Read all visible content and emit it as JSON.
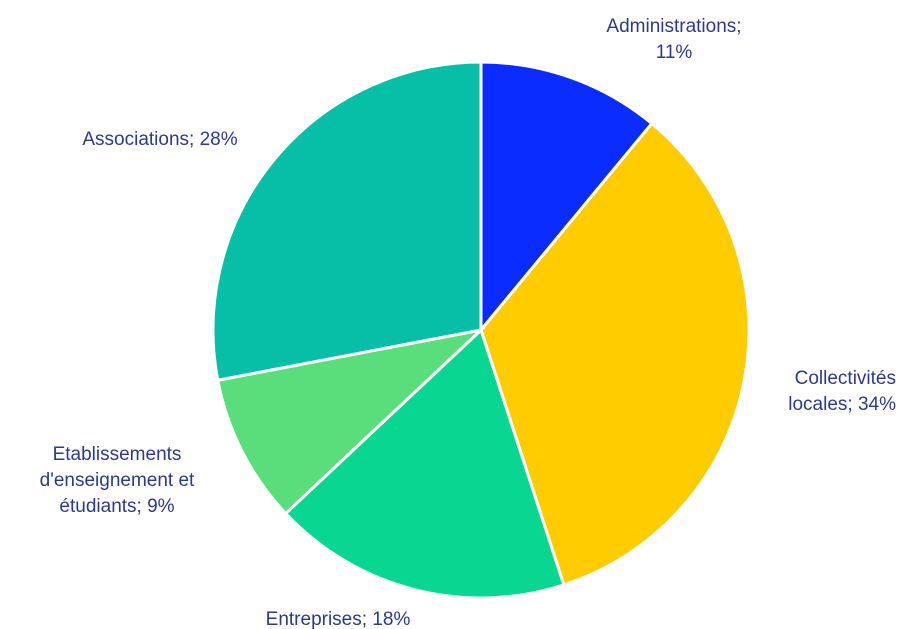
{
  "chart_data": {
    "type": "pie",
    "title": "",
    "start_angle_deg": 0,
    "direction": "clockwise",
    "slices": [
      {
        "label": "Administrations",
        "value": 11,
        "display": "Administrations; 11%",
        "color": "#0a2cff"
      },
      {
        "label": "Collectivités locales",
        "value": 34,
        "display": "Collectivités locales; 34%",
        "color": "#ffcc00"
      },
      {
        "label": "Entreprises",
        "value": 18,
        "display": "Entreprises; 18%",
        "color": "#08d691"
      },
      {
        "label": "Etablissements d'enseignement et étudiants",
        "value": 9,
        "display": "Etablissements d'enseignement et étudiants; 9%",
        "color": "#5ade7c"
      },
      {
        "label": "Associations",
        "value": 28,
        "display": "Associations; 28%",
        "color": "#06bfa6"
      }
    ]
  }
}
